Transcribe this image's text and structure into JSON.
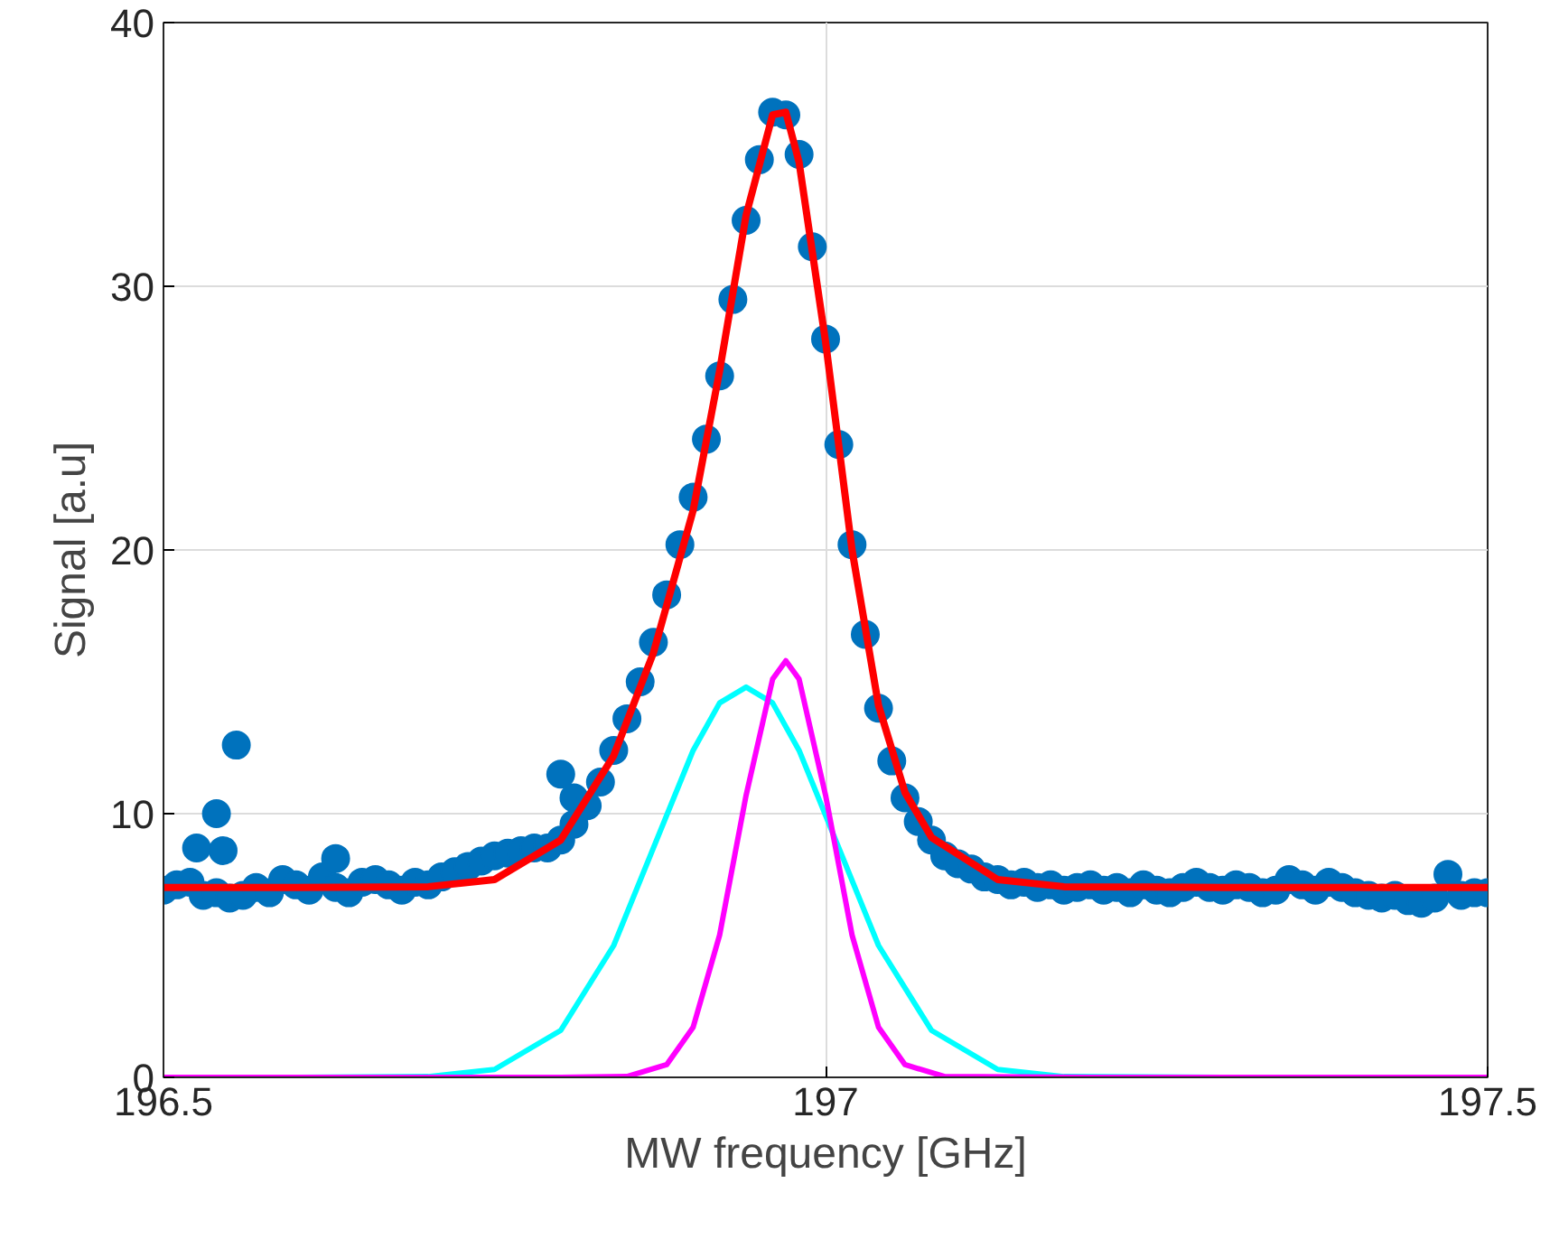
{
  "chart_data": {
    "type": "line",
    "xlabel": "MW frequency [GHz]",
    "ylabel": "Signal [a.u]",
    "xlim": [
      196.5,
      197.5
    ],
    "xticks": [
      196.5,
      197,
      197.5
    ],
    "ylim": [
      0,
      40
    ],
    "yticks": [
      0,
      10,
      20,
      30,
      40
    ],
    "grid": true,
    "series": [
      {
        "type": "scatter",
        "color": "#0072bd",
        "marker": "circle",
        "x": [
          196.5,
          196.51,
          196.52,
          196.525,
          196.53,
          196.54,
          196.54,
          196.545,
          196.55,
          196.555,
          196.56,
          196.57,
          196.58,
          196.59,
          196.6,
          196.61,
          196.62,
          196.63,
          196.63,
          196.64,
          196.65,
          196.66,
          196.67,
          196.68,
          196.69,
          196.7,
          196.71,
          196.72,
          196.73,
          196.74,
          196.75,
          196.76,
          196.77,
          196.78,
          196.79,
          196.8,
          196.8,
          196.81,
          196.81,
          196.82,
          196.83,
          196.84,
          196.85,
          196.86,
          196.87,
          196.88,
          196.89,
          196.9,
          196.91,
          196.92,
          196.93,
          196.94,
          196.95,
          196.96,
          196.97,
          196.98,
          196.99,
          197.0,
          197.01,
          197.02,
          197.03,
          197.04,
          197.05,
          197.06,
          197.07,
          197.08,
          197.09,
          197.1,
          197.11,
          197.12,
          197.13,
          197.14,
          197.15,
          197.16,
          197.17,
          197.18,
          197.19,
          197.2,
          197.21,
          197.22,
          197.23,
          197.24,
          197.25,
          197.26,
          197.27,
          197.28,
          197.29,
          197.3,
          197.31,
          197.32,
          197.33,
          197.34,
          197.35,
          197.36,
          197.37,
          197.38,
          197.39,
          197.4,
          197.41,
          197.42,
          197.43,
          197.44,
          197.45,
          197.46,
          197.47,
          197.48,
          197.49,
          197.5
        ],
        "values": [
          7.1,
          7.3,
          7.4,
          8.7,
          6.9,
          7.0,
          10.0,
          8.6,
          6.8,
          12.6,
          6.9,
          7.2,
          7.0,
          7.5,
          7.3,
          7.1,
          7.6,
          7.2,
          8.3,
          7.0,
          7.4,
          7.5,
          7.3,
          7.1,
          7.4,
          7.3,
          7.6,
          7.8,
          8.0,
          8.2,
          8.4,
          8.5,
          8.6,
          8.7,
          8.7,
          9.0,
          11.5,
          9.6,
          10.6,
          10.3,
          11.2,
          12.4,
          13.6,
          15.0,
          16.5,
          18.3,
          20.2,
          22.0,
          24.2,
          26.6,
          29.5,
          32.5,
          34.8,
          36.6,
          36.5,
          35.0,
          31.5,
          28.0,
          24.0,
          20.2,
          16.8,
          14.0,
          12.0,
          10.6,
          9.7,
          9.0,
          8.4,
          8.1,
          7.9,
          7.6,
          7.5,
          7.3,
          7.4,
          7.2,
          7.3,
          7.1,
          7.2,
          7.3,
          7.1,
          7.2,
          7.0,
          7.3,
          7.1,
          7.0,
          7.2,
          7.4,
          7.2,
          7.1,
          7.3,
          7.2,
          7.0,
          7.1,
          7.5,
          7.3,
          7.1,
          7.4,
          7.2,
          7.0,
          6.9,
          6.8,
          6.9,
          6.7,
          6.6,
          6.8,
          7.7,
          6.9,
          7.0,
          7.0
        ]
      },
      {
        "color": "#00ffff",
        "line_style": "solid",
        "x": [
          196.5,
          196.6,
          196.7,
          196.75,
          196.8,
          196.84,
          196.87,
          196.9,
          196.92,
          196.94,
          196.96,
          196.98,
          197.01,
          197.04,
          197.08,
          197.13,
          197.18,
          197.3,
          197.5
        ],
        "values": [
          0,
          0,
          0.03,
          0.3,
          1.78,
          5.0,
          8.7,
          12.4,
          14.2,
          14.8,
          14.2,
          12.4,
          8.7,
          5.0,
          1.78,
          0.3,
          0.03,
          0,
          0
        ]
      },
      {
        "color": "#ff00ff",
        "line_style": "solid",
        "x": [
          196.5,
          196.8,
          196.85,
          196.88,
          196.9,
          196.92,
          196.94,
          196.96,
          196.97,
          196.98,
          197.0,
          197.02,
          197.04,
          197.06,
          197.09,
          197.2,
          197.5
        ],
        "values": [
          0,
          0,
          0.03,
          0.48,
          1.9,
          5.4,
          10.7,
          15.1,
          15.8,
          15.1,
          10.7,
          5.4,
          1.9,
          0.48,
          0.03,
          0,
          0
        ]
      },
      {
        "color": "#ff0000",
        "line_style": "solid",
        "x": [
          196.5,
          196.6,
          196.7,
          196.75,
          196.8,
          196.84,
          196.87,
          196.9,
          196.92,
          196.94,
          196.96,
          196.97,
          196.98,
          197.0,
          197.02,
          197.04,
          197.06,
          197.08,
          197.13,
          197.18,
          197.3,
          197.5
        ],
        "values": [
          7.2,
          7.2,
          7.23,
          7.5,
          9.0,
          12.2,
          16.1,
          21.5,
          26.8,
          32.7,
          36.5,
          36.6,
          34.7,
          27.9,
          20.0,
          14.1,
          10.8,
          9.1,
          7.5,
          7.23,
          7.2,
          7.2
        ]
      }
    ]
  }
}
